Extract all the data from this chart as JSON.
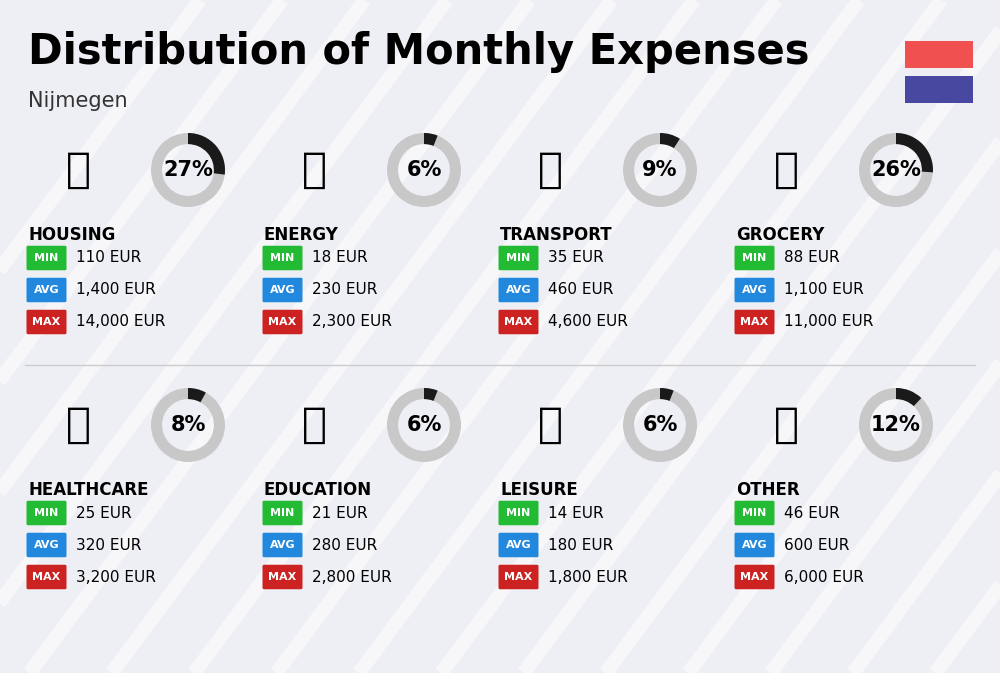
{
  "title": "Distribution of Monthly Expenses",
  "subtitle": "Nijmegen",
  "background_color": "#eeeff4",
  "categories": [
    {
      "name": "HOUSING",
      "pct": 27,
      "min": "110 EUR",
      "avg": "1,400 EUR",
      "max": "14,000 EUR",
      "row": 0,
      "col": 0
    },
    {
      "name": "ENERGY",
      "pct": 6,
      "min": "18 EUR",
      "avg": "230 EUR",
      "max": "2,300 EUR",
      "row": 0,
      "col": 1
    },
    {
      "name": "TRANSPORT",
      "pct": 9,
      "min": "35 EUR",
      "avg": "460 EUR",
      "max": "4,600 EUR",
      "row": 0,
      "col": 2
    },
    {
      "name": "GROCERY",
      "pct": 26,
      "min": "88 EUR",
      "avg": "1,100 EUR",
      "max": "11,000 EUR",
      "row": 0,
      "col": 3
    },
    {
      "name": "HEALTHCARE",
      "pct": 8,
      "min": "25 EUR",
      "avg": "320 EUR",
      "max": "3,200 EUR",
      "row": 1,
      "col": 0
    },
    {
      "name": "EDUCATION",
      "pct": 6,
      "min": "21 EUR",
      "avg": "280 EUR",
      "max": "2,800 EUR",
      "row": 1,
      "col": 1
    },
    {
      "name": "LEISURE",
      "pct": 6,
      "min": "14 EUR",
      "avg": "180 EUR",
      "max": "1,800 EUR",
      "row": 1,
      "col": 2
    },
    {
      "name": "OTHER",
      "pct": 12,
      "min": "46 EUR",
      "avg": "600 EUR",
      "max": "6,000 EUR",
      "row": 1,
      "col": 3
    }
  ],
  "min_color": "#22bb33",
  "avg_color": "#2288dd",
  "max_color": "#cc2222",
  "arc_color": "#1a1a1a",
  "arc_bg_color": "#c8c8c8",
  "flag_red": "#f05050",
  "flag_blue": "#4848a0",
  "title_fontsize": 30,
  "subtitle_fontsize": 15,
  "cat_fontsize": 12,
  "pct_fontsize": 15,
  "badge_fontsize": 8,
  "value_fontsize": 11
}
